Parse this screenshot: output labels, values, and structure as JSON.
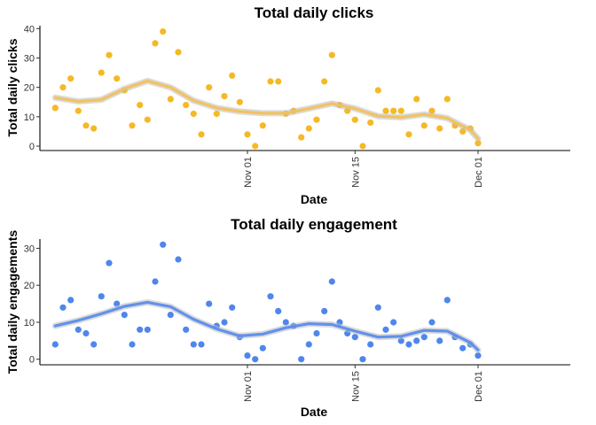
{
  "chart_data": [
    {
      "type": "scatter",
      "title": "Total daily clicks",
      "xlabel": "Date",
      "ylabel": "Total daily clicks",
      "x_ticks": [
        {
          "label": "Nov 01",
          "date": "2017-11-01"
        },
        {
          "label": "Nov 15",
          "date": "2017-11-15"
        },
        {
          "label": "Dec 01",
          "date": "2017-12-01"
        }
      ],
      "y_ticks": [
        0,
        10,
        20,
        30,
        40
      ],
      "ylim": [
        -1.5,
        41
      ],
      "xlim": [
        "2017-10-05",
        "2017-12-13"
      ],
      "grid": false,
      "smooth": true,
      "point_color": "#F5B925",
      "smooth_color": "#F2C15C",
      "band_color": "#BEBEBE",
      "series": [
        {
          "points": [
            [
              "2017-10-07",
              13
            ],
            [
              "2017-10-08",
              20
            ],
            [
              "2017-10-09",
              23
            ],
            [
              "2017-10-10",
              12
            ],
            [
              "2017-10-11",
              7
            ],
            [
              "2017-10-12",
              6
            ],
            [
              "2017-10-13",
              25
            ],
            [
              "2017-10-14",
              31
            ],
            [
              "2017-10-15",
              23
            ],
            [
              "2017-10-16",
              19
            ],
            [
              "2017-10-17",
              7
            ],
            [
              "2017-10-18",
              14
            ],
            [
              "2017-10-19",
              9
            ],
            [
              "2017-10-20",
              35
            ],
            [
              "2017-10-21",
              39
            ],
            [
              "2017-10-22",
              16
            ],
            [
              "2017-10-23",
              32
            ],
            [
              "2017-10-24",
              14
            ],
            [
              "2017-10-25",
              11
            ],
            [
              "2017-10-26",
              4
            ],
            [
              "2017-10-27",
              20
            ],
            [
              "2017-10-28",
              11
            ],
            [
              "2017-10-29",
              17
            ],
            [
              "2017-10-30",
              24
            ],
            [
              "2017-10-31",
              15
            ],
            [
              "2017-11-01",
              4
            ],
            [
              "2017-11-02",
              0
            ],
            [
              "2017-11-03",
              7
            ],
            [
              "2017-11-04",
              22
            ],
            [
              "2017-11-05",
              22
            ],
            [
              "2017-11-06",
              11
            ],
            [
              "2017-11-07",
              12
            ],
            [
              "2017-11-08",
              3
            ],
            [
              "2017-11-09",
              6
            ],
            [
              "2017-11-10",
              9
            ],
            [
              "2017-11-11",
              22
            ],
            [
              "2017-11-12",
              31
            ],
            [
              "2017-11-13",
              14
            ],
            [
              "2017-11-14",
              12
            ],
            [
              "2017-11-15",
              9
            ],
            [
              "2017-11-16",
              0
            ],
            [
              "2017-11-17",
              8
            ],
            [
              "2017-11-18",
              19
            ],
            [
              "2017-11-19",
              12
            ],
            [
              "2017-11-20",
              12
            ],
            [
              "2017-11-21",
              12
            ],
            [
              "2017-11-22",
              4
            ],
            [
              "2017-11-23",
              16
            ],
            [
              "2017-11-24",
              7
            ],
            [
              "2017-11-25",
              12
            ],
            [
              "2017-11-26",
              6
            ],
            [
              "2017-11-27",
              16
            ],
            [
              "2017-11-28",
              7
            ],
            [
              "2017-11-29",
              5
            ],
            [
              "2017-11-30",
              6
            ],
            [
              "2017-12-01",
              1
            ]
          ],
          "smooth": [
            [
              "2017-10-07",
              16.5
            ],
            [
              "2017-10-10",
              15.2
            ],
            [
              "2017-10-13",
              15.8
            ],
            [
              "2017-10-16",
              19.5
            ],
            [
              "2017-10-19",
              22.2
            ],
            [
              "2017-10-22",
              20.0
            ],
            [
              "2017-10-25",
              15.5
            ],
            [
              "2017-10-28",
              13.0
            ],
            [
              "2017-10-31",
              11.8
            ],
            [
              "2017-11-03",
              11.2
            ],
            [
              "2017-11-06",
              11.2
            ],
            [
              "2017-11-09",
              12.8
            ],
            [
              "2017-11-12",
              14.5
            ],
            [
              "2017-11-15",
              12.8
            ],
            [
              "2017-11-18",
              10.2
            ],
            [
              "2017-11-21",
              9.8
            ],
            [
              "2017-11-24",
              10.8
            ],
            [
              "2017-11-27",
              9.5
            ],
            [
              "2017-11-30",
              5.5
            ],
            [
              "2017-12-01",
              2.5
            ]
          ]
        }
      ]
    },
    {
      "type": "scatter",
      "title": "Total daily engagement",
      "xlabel": "Date",
      "ylabel": "Total daily engagements",
      "x_ticks": [
        {
          "label": "Nov 01",
          "date": "2017-11-01"
        },
        {
          "label": "Nov 15",
          "date": "2017-11-15"
        },
        {
          "label": "Dec 01",
          "date": "2017-12-01"
        }
      ],
      "y_ticks": [
        0,
        10,
        20,
        30
      ],
      "ylim": [
        -1.5,
        32.5
      ],
      "xlim": [
        "2017-10-05",
        "2017-12-13"
      ],
      "grid": false,
      "smooth": true,
      "point_color": "#4F86EC",
      "smooth_color": "#5C8DED",
      "band_color": "#BEBEBE",
      "series": [
        {
          "points": [
            [
              "2017-10-07",
              4
            ],
            [
              "2017-10-08",
              14
            ],
            [
              "2017-10-09",
              16
            ],
            [
              "2017-10-10",
              8
            ],
            [
              "2017-10-11",
              7
            ],
            [
              "2017-10-12",
              4
            ],
            [
              "2017-10-13",
              17
            ],
            [
              "2017-10-14",
              26
            ],
            [
              "2017-10-15",
              15
            ],
            [
              "2017-10-16",
              12
            ],
            [
              "2017-10-17",
              4
            ],
            [
              "2017-10-18",
              8
            ],
            [
              "2017-10-19",
              8
            ],
            [
              "2017-10-20",
              21
            ],
            [
              "2017-10-21",
              31
            ],
            [
              "2017-10-22",
              12
            ],
            [
              "2017-10-23",
              27
            ],
            [
              "2017-10-24",
              8
            ],
            [
              "2017-10-25",
              4
            ],
            [
              "2017-10-26",
              4
            ],
            [
              "2017-10-27",
              15
            ],
            [
              "2017-10-28",
              9
            ],
            [
              "2017-10-29",
              10
            ],
            [
              "2017-10-30",
              14
            ],
            [
              "2017-10-31",
              6
            ],
            [
              "2017-11-01",
              1
            ],
            [
              "2017-11-02",
              0
            ],
            [
              "2017-11-03",
              3
            ],
            [
              "2017-11-04",
              17
            ],
            [
              "2017-11-05",
              13
            ],
            [
              "2017-11-06",
              10
            ],
            [
              "2017-11-07",
              9
            ],
            [
              "2017-11-08",
              0
            ],
            [
              "2017-11-09",
              4
            ],
            [
              "2017-11-10",
              7
            ],
            [
              "2017-11-11",
              13
            ],
            [
              "2017-11-12",
              21
            ],
            [
              "2017-11-13",
              10
            ],
            [
              "2017-11-14",
              7
            ],
            [
              "2017-11-15",
              6
            ],
            [
              "2017-11-16",
              0
            ],
            [
              "2017-11-17",
              4
            ],
            [
              "2017-11-18",
              14
            ],
            [
              "2017-11-19",
              8
            ],
            [
              "2017-11-20",
              10
            ],
            [
              "2017-11-21",
              5
            ],
            [
              "2017-11-22",
              4
            ],
            [
              "2017-11-23",
              5
            ],
            [
              "2017-11-24",
              6
            ],
            [
              "2017-11-25",
              10
            ],
            [
              "2017-11-26",
              5
            ],
            [
              "2017-11-27",
              16
            ],
            [
              "2017-11-28",
              6
            ],
            [
              "2017-11-29",
              3
            ],
            [
              "2017-11-30",
              4
            ],
            [
              "2017-12-01",
              1
            ]
          ],
          "smooth": [
            [
              "2017-10-07",
              9.0
            ],
            [
              "2017-10-10",
              10.5
            ],
            [
              "2017-10-13",
              12.3
            ],
            [
              "2017-10-16",
              14.3
            ],
            [
              "2017-10-19",
              15.4
            ],
            [
              "2017-10-22",
              14.2
            ],
            [
              "2017-10-25",
              10.8
            ],
            [
              "2017-10-28",
              8.2
            ],
            [
              "2017-10-31",
              6.3
            ],
            [
              "2017-11-03",
              6.8
            ],
            [
              "2017-11-06",
              8.5
            ],
            [
              "2017-11-09",
              9.6
            ],
            [
              "2017-11-12",
              9.4
            ],
            [
              "2017-11-15",
              7.6
            ],
            [
              "2017-11-18",
              6.0
            ],
            [
              "2017-11-21",
              6.2
            ],
            [
              "2017-11-24",
              7.8
            ],
            [
              "2017-11-27",
              7.6
            ],
            [
              "2017-11-30",
              4.5
            ],
            [
              "2017-12-01",
              2.5
            ]
          ]
        }
      ]
    }
  ]
}
